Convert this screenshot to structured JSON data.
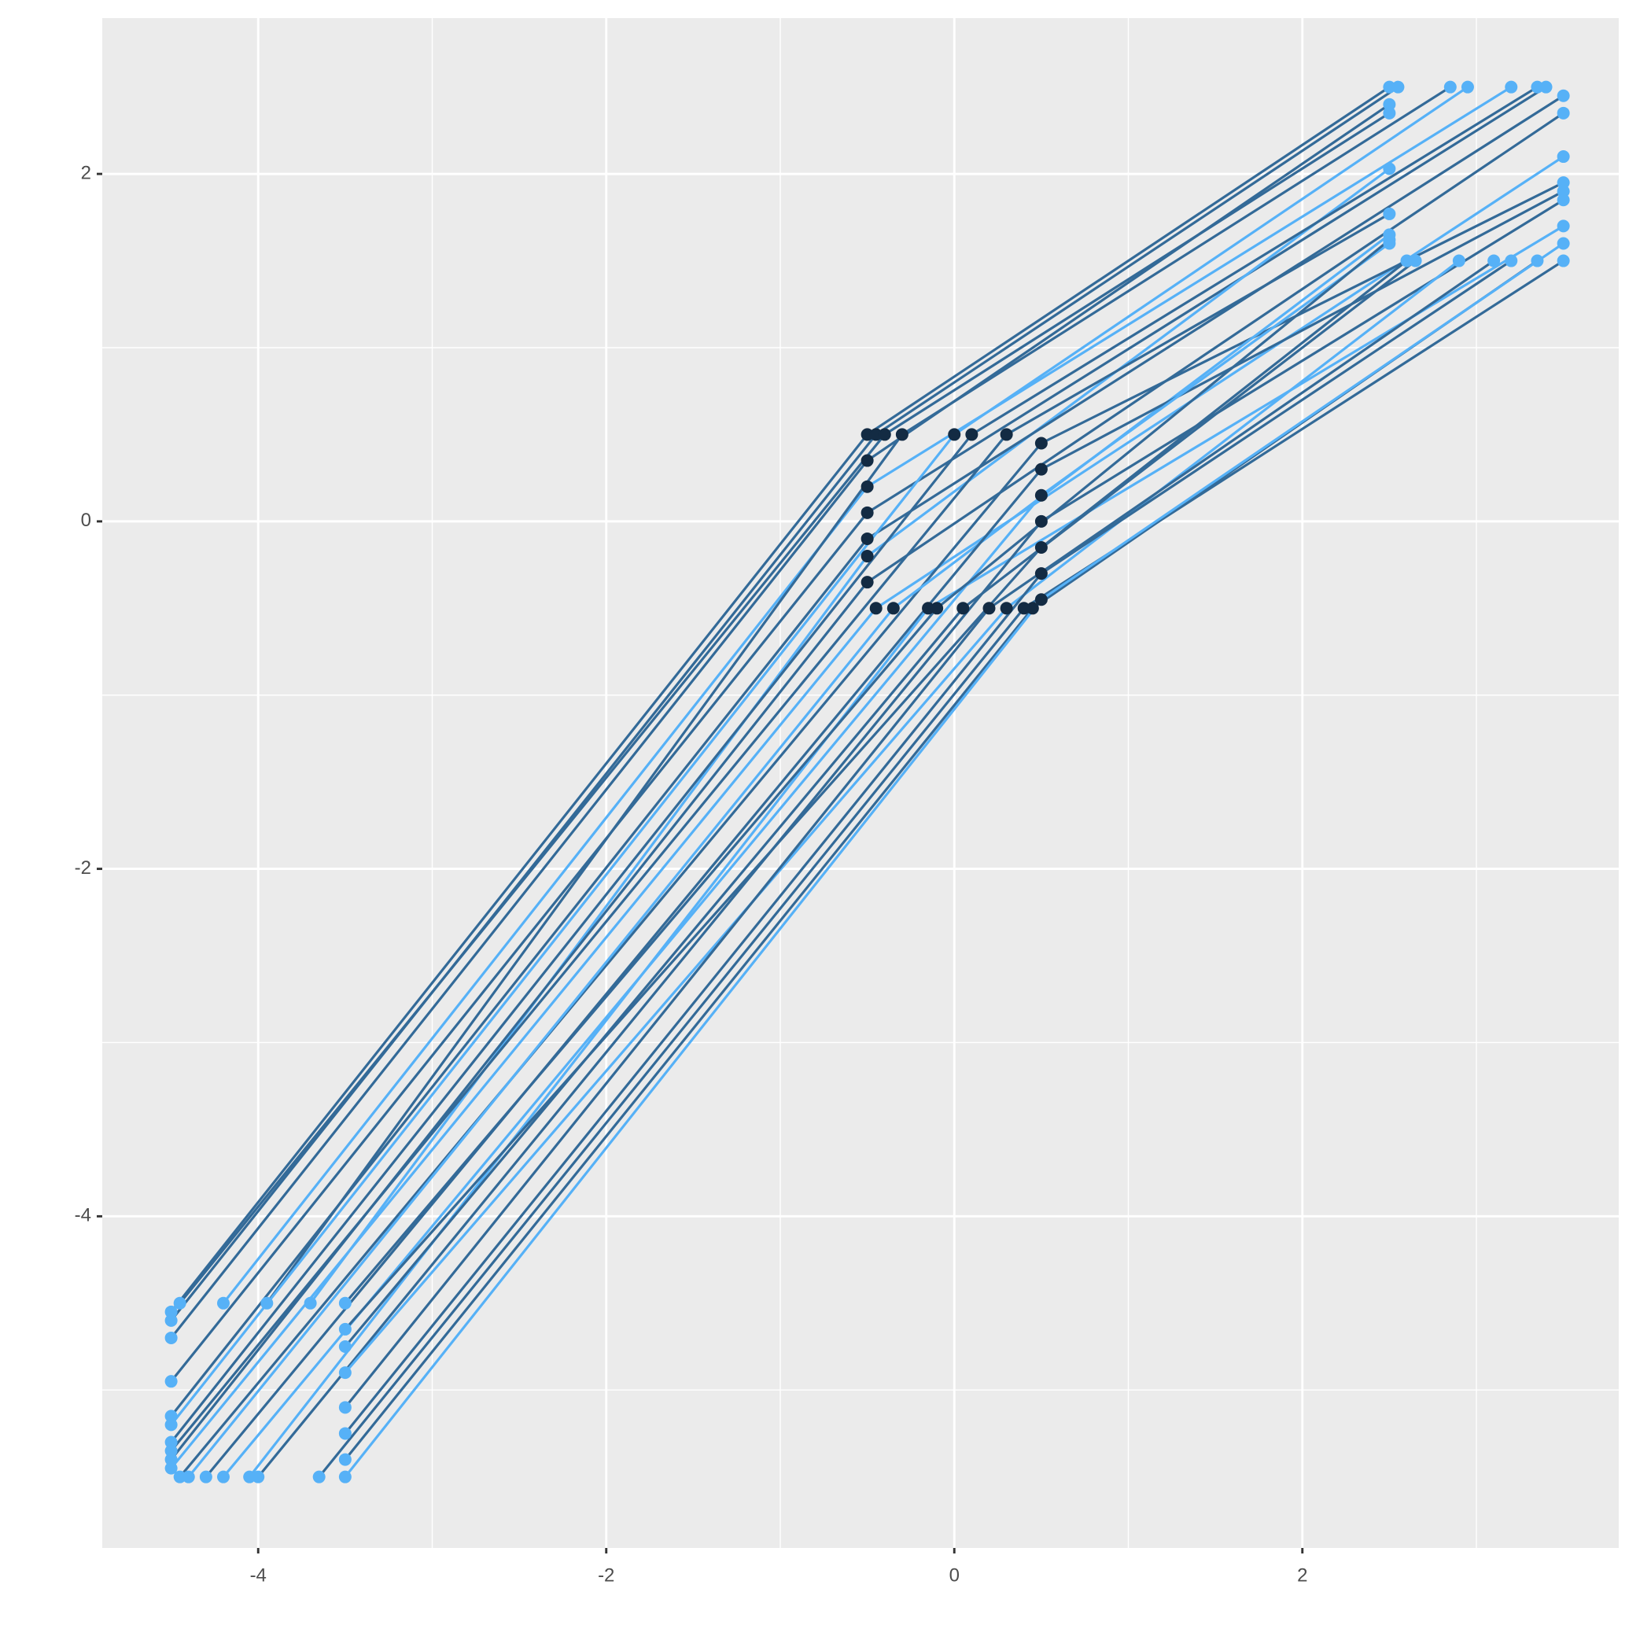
{
  "chart_data": {
    "type": "line",
    "xlim": [
      -4.896,
      3.818
    ],
    "ylim": [
      -5.909,
      2.897
    ],
    "xticks": [
      -4,
      -2,
      0,
      2
    ],
    "yticks": [
      -4,
      -2,
      0,
      2
    ],
    "grid": true,
    "marker_colors": [
      "#56b1f7",
      "#132b43",
      "#56b1f7"
    ],
    "series": [
      {
        "color": "#336a98",
        "x": [
          -4.5,
          -0.5,
          2.5
        ],
        "values": [
          -4.55,
          0.5,
          2.5
        ]
      },
      {
        "color": "#336a98",
        "x": [
          -4.5,
          -0.45,
          2.55
        ],
        "values": [
          -4.6,
          0.5,
          2.5
        ]
      },
      {
        "color": "#336a98",
        "x": [
          -4.45,
          -0.4,
          2.5
        ],
        "values": [
          -4.5,
          0.5,
          2.35
        ]
      },
      {
        "color": "#336a98",
        "x": [
          -4.5,
          -0.5,
          2.5
        ],
        "values": [
          -4.7,
          0.35,
          2.4
        ]
      },
      {
        "color": "#56b1f7",
        "x": [
          -4.2,
          -0.5,
          3.2
        ],
        "values": [
          -4.5,
          0.2,
          2.5
        ]
      },
      {
        "color": "#336a98",
        "x": [
          -4.5,
          -0.5,
          3.4
        ],
        "values": [
          -4.95,
          0.05,
          2.5
        ]
      },
      {
        "color": "#336a98",
        "x": [
          -3.95,
          -0.3,
          2.85
        ],
        "values": [
          -4.5,
          0.5,
          2.5
        ]
      },
      {
        "color": "#56b1f7",
        "x": [
          -3.7,
          -0.5,
          2.5
        ],
        "values": [
          -4.5,
          -0.2,
          2.03
        ]
      },
      {
        "color": "#336a98",
        "x": [
          -4.5,
          -0.5,
          3.5
        ],
        "values": [
          -5.15,
          -0.1,
          2.45
        ]
      },
      {
        "color": "#56b1f7",
        "x": [
          -4.5,
          0.0,
          2.95
        ],
        "values": [
          -5.2,
          0.5,
          2.5
        ]
      },
      {
        "color": "#336a98",
        "x": [
          -4.5,
          0.1,
          3.35
        ],
        "values": [
          -5.3,
          0.5,
          2.5
        ]
      },
      {
        "color": "#336a98",
        "x": [
          -4.5,
          -0.5,
          3.5
        ],
        "values": [
          -5.4,
          -0.35,
          2.35
        ]
      },
      {
        "color": "#336a98",
        "x": [
          -4.5,
          0.3,
          2.5
        ],
        "values": [
          -5.35,
          0.5,
          1.77
        ]
      },
      {
        "color": "#56b1f7",
        "x": [
          -4.5,
          -0.45,
          3.5
        ],
        "values": [
          -5.45,
          -0.5,
          2.1
        ]
      },
      {
        "color": "#336a98",
        "x": [
          -4.45,
          0.5,
          3.5
        ],
        "values": [
          -5.5,
          0.45,
          1.95
        ]
      },
      {
        "color": "#56b1f7",
        "x": [
          -4.4,
          -0.35,
          2.5
        ],
        "values": [
          -5.5,
          -0.5,
          1.65
        ]
      },
      {
        "color": "#336a98",
        "x": [
          -4.3,
          0.5,
          3.5
        ],
        "values": [
          -5.5,
          0.3,
          1.9
        ]
      },
      {
        "color": "#56b1f7",
        "x": [
          -4.2,
          0.5,
          2.5
        ],
        "values": [
          -5.5,
          0.15,
          1.6
        ]
      },
      {
        "color": "#56b1f7",
        "x": [
          -4.05,
          -0.15,
          3.5
        ],
        "values": [
          -5.5,
          -0.5,
          1.7
        ]
      },
      {
        "color": "#336a98",
        "x": [
          -4.0,
          0.5,
          3.5
        ],
        "values": [
          -5.5,
          0.0,
          1.85
        ]
      },
      {
        "color": "#336a98",
        "x": [
          -3.5,
          -0.1,
          2.5
        ],
        "values": [
          -4.5,
          -0.5,
          1.62
        ]
      },
      {
        "color": "#336a98",
        "x": [
          -3.5,
          0.5,
          2.6
        ],
        "values": [
          -4.65,
          -0.15,
          1.5
        ]
      },
      {
        "color": "#336a98",
        "x": [
          -3.5,
          0.05,
          2.65
        ],
        "values": [
          -4.75,
          -0.5,
          1.5
        ]
      },
      {
        "color": "#56b1f7",
        "x": [
          -3.5,
          0.3,
          2.9
        ],
        "values": [
          -4.9,
          -0.5,
          1.5
        ]
      },
      {
        "color": "#336a98",
        "x": [
          -3.5,
          0.2,
          3.1
        ],
        "values": [
          -5.1,
          -0.5,
          1.5
        ]
      },
      {
        "color": "#336a98",
        "x": [
          -3.5,
          0.5,
          3.2
        ],
        "values": [
          -5.25,
          -0.3,
          1.5
        ]
      },
      {
        "color": "#336a98",
        "x": [
          -3.5,
          0.45,
          3.35
        ],
        "values": [
          -5.4,
          -0.5,
          1.5
        ]
      },
      {
        "color": "#336a98",
        "x": [
          -3.65,
          0.4,
          3.5
        ],
        "values": [
          -5.5,
          -0.5,
          1.5
        ]
      },
      {
        "color": "#56b1f7",
        "x": [
          -3.5,
          0.5,
          3.5
        ],
        "values": [
          -5.5,
          -0.45,
          1.6
        ]
      }
    ]
  }
}
